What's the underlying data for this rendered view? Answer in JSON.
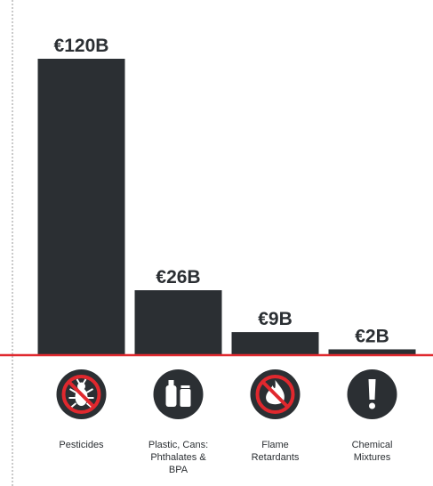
{
  "chart_data": {
    "type": "bar",
    "categories": [
      "Pesticides",
      "Plastic, Cans: Phthalates & BPA",
      "Flame Retardants",
      "Chemical Mixtures"
    ],
    "values": [
      120,
      26,
      9,
      2
    ],
    "value_labels": [
      "€120B",
      "€26B",
      "€9B",
      "€2B"
    ],
    "color": "#2b2f33",
    "baseline_color": "#e0282e"
  }
}
